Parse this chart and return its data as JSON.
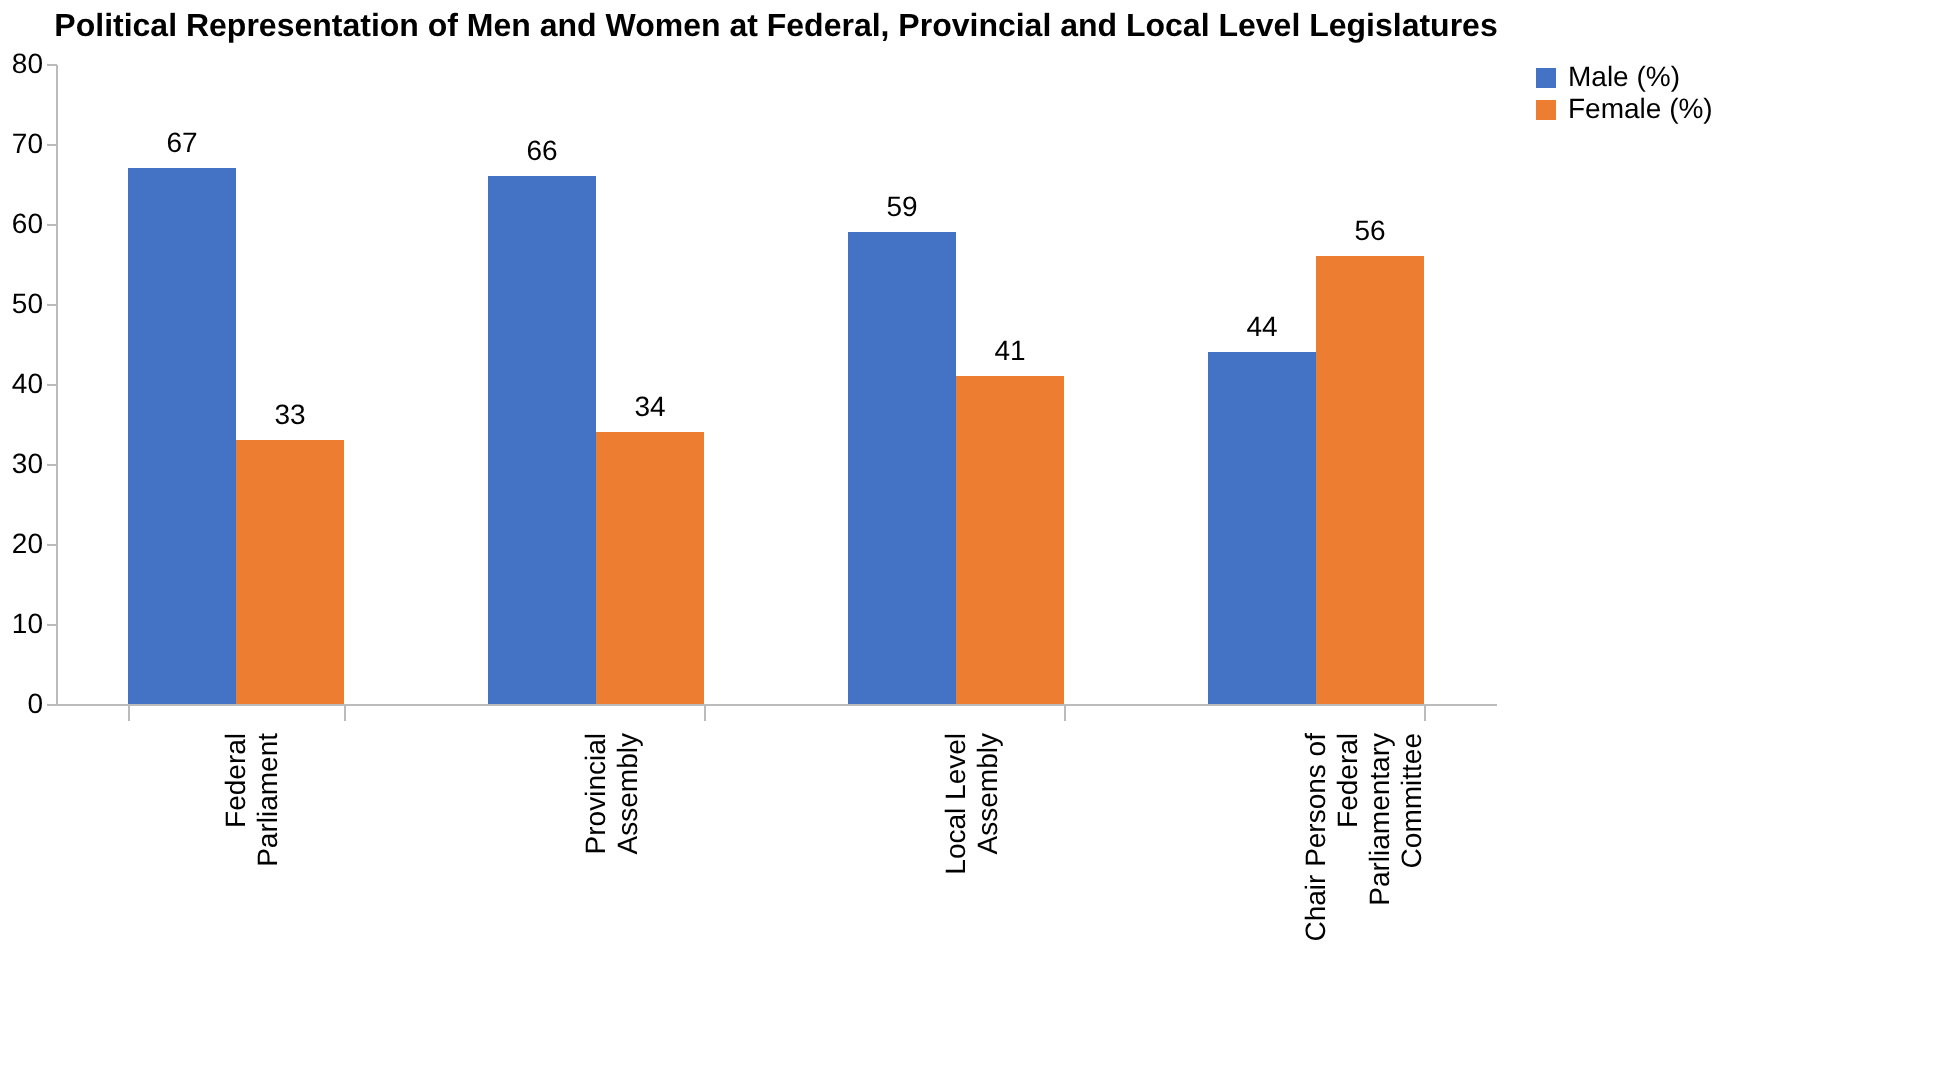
{
  "chart_data": {
    "type": "bar",
    "title": "Political Representation of Men and Women at Federal, Provincial and Local Level Legislatures",
    "categories": [
      "Federal\nParliament",
      "Provincial\nAssembly",
      "Local Level\nAssembly",
      "Chair Persons of\nFederal\nParliamentary\nCommittee"
    ],
    "series": [
      {
        "name": "Male (%)",
        "color": "#4472c4",
        "values": [
          67,
          66,
          59,
          44
        ]
      },
      {
        "name": "Female (%)",
        "color": "#ed7d31",
        "values": [
          33,
          34,
          41,
          56
        ]
      }
    ],
    "ylim": [
      0,
      80
    ],
    "yticks": [
      0,
      10,
      20,
      30,
      40,
      50,
      60,
      70,
      80
    ],
    "grid": false,
    "legend": "right",
    "data_labels": true
  }
}
